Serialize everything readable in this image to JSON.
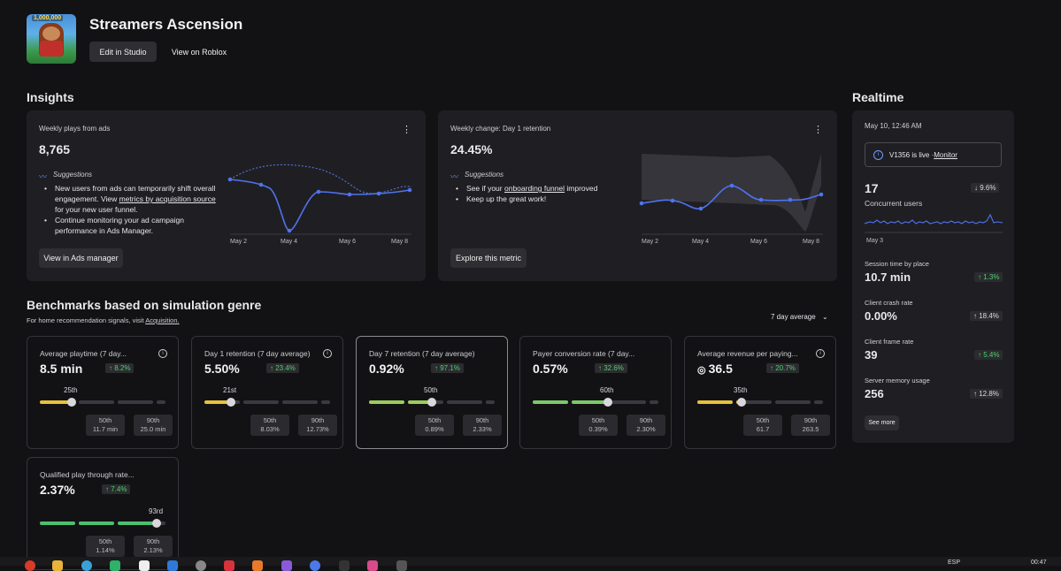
{
  "header": {
    "game_title": "Streamers Ascension",
    "thumbnail_badge": "1,000,000",
    "edit_label": "Edit in Studio",
    "view_label": "View on Roblox"
  },
  "insights": {
    "heading": "Insights",
    "card1": {
      "title": "Weekly plays from ads",
      "value": "8,765",
      "suggestions_label": "Suggestions",
      "bullet1_a": "New users from ads can temporarily shift overall engagement. View ",
      "bullet1_link": "metrics by acquisition source",
      "bullet1_b": " for your new user funnel.",
      "bullet2": "Continue monitoring your ad campaign performance in Ads Manager.",
      "button": "View in Ads manager",
      "x_labels": [
        "May 2",
        "May 4",
        "May 6",
        "May 8"
      ]
    },
    "card2": {
      "title": "Weekly change: Day 1 retention",
      "value": "24.45%",
      "suggestions_label": "Suggestions",
      "bullet1_a": "See if your ",
      "bullet1_link": "onboarding funnel",
      "bullet1_b": " improved",
      "bullet2": "Keep up the great work!",
      "button": "Explore this metric",
      "x_labels": [
        "May 2",
        "May 4",
        "May 6",
        "May 8"
      ]
    }
  },
  "benchmarks": {
    "heading": "Benchmarks based on simulation genre",
    "subtitle_a": "For home recommendation signals, visit ",
    "subtitle_link": "Acquisition.",
    "range_select": "7 day average",
    "cards": [
      {
        "title": "Average playtime (7 day...",
        "value": "8.5 min",
        "delta": "8.2%",
        "percentile": "25th",
        "fill": 0.25,
        "color": "#e6c23a",
        "b50": "50th",
        "v50": "11.7 min",
        "b90": "90th",
        "v90": "25.0 min"
      },
      {
        "title": "Day 1 retention (7 day average)",
        "value": "5.50%",
        "delta": "23.4%",
        "percentile": "21st",
        "fill": 0.21,
        "color": "#e6c23a",
        "b50": "50th",
        "v50": "8.03%",
        "b90": "90th",
        "v90": "12.73%"
      },
      {
        "title": "Day 7 retention (7 day average)",
        "value": "0.92%",
        "delta": "97.1%",
        "percentile": "50th",
        "fill": 0.5,
        "color": "#9ccc5a",
        "b50": "50th",
        "v50": "0.89%",
        "b90": "90th",
        "v90": "2.33%"
      },
      {
        "title": "Payer conversion rate (7 day...",
        "value": "0.57%",
        "delta": "32.6%",
        "percentile": "60th",
        "fill": 0.6,
        "color": "#7bc96a",
        "b50": "50th",
        "v50": "0.39%",
        "b90": "90th",
        "v90": "2.30%"
      },
      {
        "title": "Average revenue per paying...",
        "value": "36.5",
        "delta": "20.7%",
        "percentile": "35th",
        "fill": 0.35,
        "color": "#e6c23a",
        "b50": "50th",
        "v50": "61.7",
        "b90": "90th",
        "v90": "263.5"
      },
      {
        "title": "Qualified play through rate...",
        "value": "2.37%",
        "delta": "7.4%",
        "percentile": "93rd",
        "fill": 0.93,
        "color": "#4cc070",
        "b50": "50th",
        "v50": "1.14%",
        "b90": "90th",
        "v90": "2.13%"
      }
    ]
  },
  "realtime": {
    "heading": "Realtime",
    "timestamp": "May 10, 12:46 AM",
    "live_text": "V1356 is live · ",
    "monitor_link": "Monitor",
    "concurrent_value": "17",
    "concurrent_label": "Concurrent users",
    "concurrent_delta": "9.6%",
    "spark_label": "May 3",
    "metrics": [
      {
        "label": "Session time by place",
        "value": "10.7 min",
        "delta": "1.3%"
      },
      {
        "label": "Client crash rate",
        "value": "0.00%",
        "delta": "18.4%"
      },
      {
        "label": "Client frame rate",
        "value": "39",
        "delta": "5.4%"
      },
      {
        "label": "Server memory usage",
        "value": "256",
        "delta": "12.8%"
      }
    ],
    "see_more": "See more"
  },
  "taskbar": {
    "lang": "ESP",
    "time": "00:47"
  }
}
